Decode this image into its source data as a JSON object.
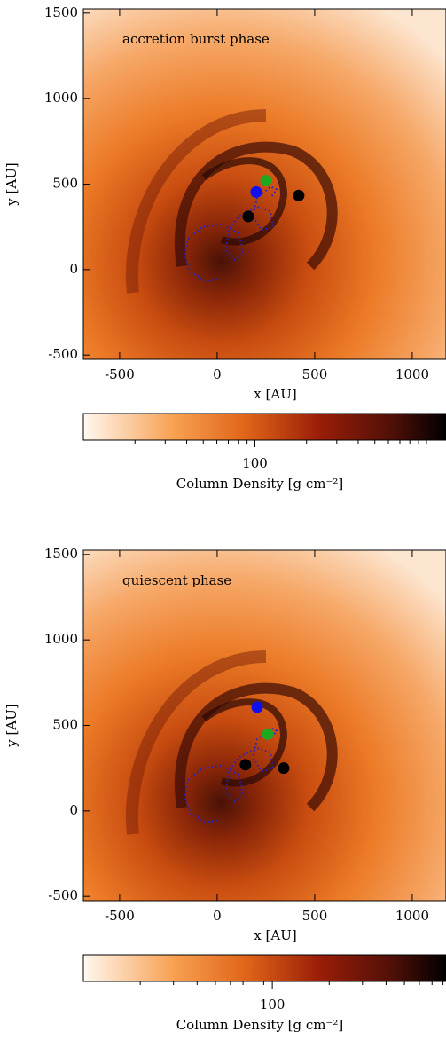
{
  "chart_data": [
    {
      "type": "scatter",
      "annotation": "accretion burst phase",
      "xlabel": "x [AU]",
      "ylabel": "y [AU]",
      "xlim": [
        -686,
        1173
      ],
      "ylim": [
        -525,
        1525
      ],
      "xticks": [
        -500,
        0,
        500,
        1000
      ],
      "yticks": [
        -500,
        0,
        500,
        1000,
        1500
      ],
      "points": {
        "x": [
          250,
          200,
          418,
          159
        ],
        "y": [
          520,
          454,
          434,
          311
        ],
        "colors": [
          "#1fa81f",
          "#1010ee",
          "#000000",
          "#000000"
        ]
      },
      "trajectory": {
        "color": "#2222cc",
        "x": [
          0,
          -59,
          -136,
          -168,
          -150,
          -77,
          23,
          105,
          136,
          91,
          45,
          59,
          114,
          205,
          273,
          286,
          227,
          182,
          205,
          273,
          305,
          273
        ],
        "y": [
          -56,
          -66,
          -15,
          77,
          179,
          250,
          265,
          214,
          112,
          56,
          112,
          230,
          316,
          367,
          342,
          250,
          230,
          316,
          418,
          485,
          469,
          418
        ]
      },
      "colorbar": {
        "label": "Column Density [g cm⁻²]",
        "log": true,
        "lim": [
          10,
          1300
        ],
        "ticks": [
          100
        ],
        "minor_ticks": [
          20,
          30,
          40,
          50,
          60,
          70,
          80,
          90,
          200,
          300,
          400,
          500,
          600,
          700,
          800,
          900,
          1000
        ]
      }
    },
    {
      "type": "scatter",
      "annotation": "quiescent phase",
      "xlabel": "x [AU]",
      "ylabel": "y [AU]",
      "xlim": [
        -686,
        1173
      ],
      "ylim": [
        -525,
        1525
      ],
      "xticks": [
        -500,
        0,
        500,
        1000
      ],
      "yticks": [
        -500,
        0,
        500,
        1000,
        1500
      ],
      "points": {
        "x": [
          205,
          259,
          341,
          145
        ],
        "y": [
          607,
          449,
          250,
          270
        ],
        "colors": [
          "#1010ee",
          "#1fa81f",
          "#000000",
          "#000000"
        ]
      },
      "trajectory": {
        "color": "#2222cc",
        "x": [
          0,
          -59,
          -136,
          -168,
          -150,
          -77,
          23,
          105,
          136,
          91,
          45,
          59,
          114,
          205,
          273,
          286,
          227,
          182,
          205,
          273,
          305,
          273
        ],
        "y": [
          -56,
          -66,
          -15,
          77,
          179,
          250,
          265,
          214,
          112,
          56,
          112,
          230,
          316,
          367,
          342,
          250,
          230,
          316,
          418,
          485,
          469,
          418
        ]
      },
      "colorbar": {
        "label": "Column Density [g cm⁻²]",
        "log": true,
        "lim": [
          10,
          830
        ],
        "ticks": [
          100
        ],
        "minor_ticks": [
          20,
          30,
          40,
          50,
          60,
          70,
          80,
          90,
          200,
          300,
          400,
          500,
          600,
          700,
          800
        ]
      }
    }
  ]
}
